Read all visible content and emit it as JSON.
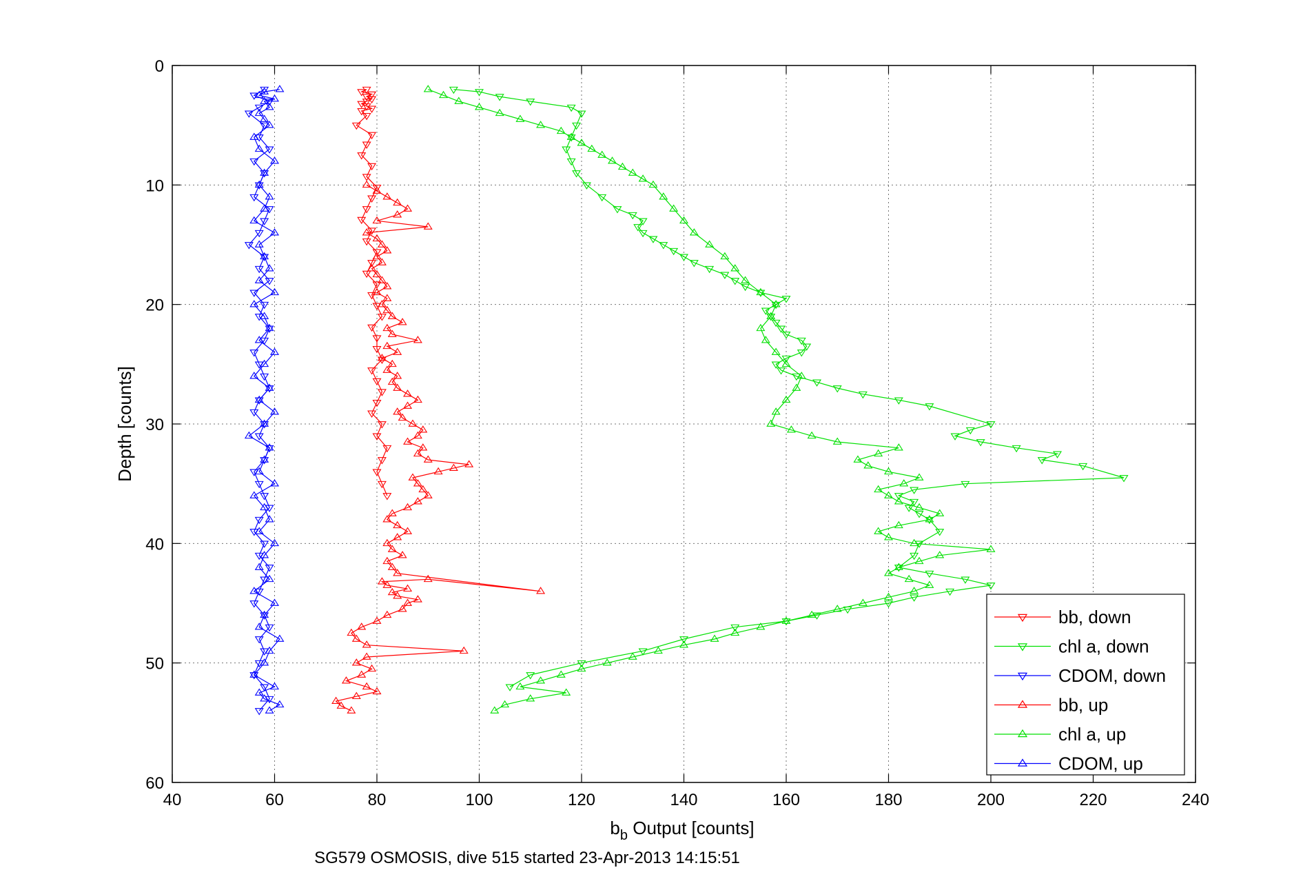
{
  "chart_data": {
    "type": "line",
    "title": "",
    "caption": "SG579 OSMOSIS, dive 515 started 23-Apr-2013 14:15:51",
    "xlabel_main": "b",
    "xlabel_sub": "b",
    "xlabel_rest": " Output [counts]",
    "ylabel": "Depth [counts]",
    "xlim": [
      40,
      240
    ],
    "ylim": [
      0,
      60
    ],
    "y_reversed": true,
    "x_ticks": [
      "40",
      "60",
      "80",
      "100",
      "120",
      "140",
      "160",
      "180",
      "200",
      "220",
      "240"
    ],
    "y_ticks": [
      "0",
      "10",
      "20",
      "30",
      "40",
      "50",
      "60"
    ],
    "grid": true,
    "legend_position": "bottom-right",
    "series": [
      {
        "name": "bb, down",
        "color": "#ff0000",
        "marker": "triangle-down",
        "x": [
          78,
          77,
          79,
          78,
          79,
          78,
          77,
          78,
          79,
          77,
          78,
          76,
          79,
          78,
          77,
          79,
          78,
          80,
          79,
          78,
          77,
          79,
          78,
          80,
          79,
          78,
          80,
          79,
          80,
          81,
          79,
          80,
          80,
          81,
          79,
          80,
          81,
          80,
          79,
          81,
          80,
          82,
          81,
          80,
          81,
          82
        ],
        "y": [
          2.0,
          2.2,
          2.4,
          2.6,
          2.8,
          3.0,
          3.2,
          3.4,
          3.6,
          3.8,
          4.2,
          5.0,
          5.8,
          6.6,
          7.5,
          8.4,
          9.3,
          10.2,
          11.1,
          12.0,
          12.9,
          13.8,
          14.7,
          15.6,
          16.5,
          17.4,
          18.3,
          19.2,
          20.1,
          21.0,
          21.9,
          22.8,
          23.7,
          24.6,
          25.5,
          26.4,
          27.3,
          28.2,
          29.1,
          30.0,
          31.0,
          32.0,
          33.0,
          34.0,
          35.0,
          36.0
        ]
      },
      {
        "name": "chl a, down",
        "color": "#00e000",
        "marker": "triangle-down",
        "x": [
          95,
          100,
          104,
          110,
          118,
          120,
          119,
          118,
          117,
          118,
          119,
          121,
          124,
          127,
          130,
          132,
          131,
          132,
          134,
          136,
          138,
          140,
          142,
          145,
          148,
          150,
          152,
          155,
          160,
          158,
          156,
          157,
          158,
          159,
          160,
          163,
          164,
          163,
          160,
          158,
          159,
          162,
          166,
          170,
          175,
          182,
          188,
          200,
          196,
          193,
          198,
          205,
          213,
          210,
          218,
          226,
          195,
          185,
          182,
          185,
          184,
          186,
          188,
          190,
          186,
          185,
          182,
          188,
          195,
          200,
          192,
          185,
          180,
          172,
          166,
          160,
          150,
          140,
          132,
          120,
          110,
          106
        ],
        "y": [
          2.0,
          2.2,
          2.6,
          3.0,
          3.5,
          4.0,
          5.0,
          6.0,
          7.0,
          8.0,
          9.0,
          10.0,
          11.0,
          12.0,
          12.5,
          13.0,
          13.5,
          14.0,
          14.5,
          15.0,
          15.5,
          16.0,
          16.5,
          17.0,
          17.5,
          18.0,
          18.5,
          19.0,
          19.5,
          20.0,
          20.5,
          21.0,
          21.5,
          22.0,
          22.5,
          23.0,
          23.5,
          24.0,
          24.5,
          25.0,
          25.5,
          26.0,
          26.5,
          27.0,
          27.5,
          28.0,
          28.5,
          30.0,
          30.5,
          31.0,
          31.5,
          32.0,
          32.5,
          33.0,
          33.5,
          34.5,
          35.0,
          35.5,
          36.0,
          36.5,
          37.0,
          37.5,
          38.0,
          39.0,
          40.0,
          41.0,
          42.0,
          42.5,
          43.0,
          43.5,
          44.0,
          44.5,
          45.0,
          45.5,
          46.0,
          46.5,
          47.0,
          48.0,
          49.0,
          50.0,
          51.0,
          52.0
        ]
      },
      {
        "name": "CDOM, down",
        "color": "#0000ff",
        "marker": "triangle-down",
        "x": [
          58,
          56,
          59,
          57,
          55,
          58,
          57,
          59,
          56,
          58,
          57,
          56,
          59,
          58,
          57,
          55,
          58,
          57,
          59,
          56,
          58,
          57,
          59,
          58,
          56,
          57,
          58,
          59,
          57,
          56,
          58,
          57,
          59,
          58,
          56,
          57,
          58,
          59,
          57,
          56,
          58,
          57,
          59,
          58,
          57,
          56,
          58,
          59,
          57,
          58,
          57,
          56,
          58,
          59,
          57
        ],
        "y": [
          2.0,
          2.5,
          3.0,
          3.5,
          4.0,
          5.0,
          6.0,
          7.0,
          8.0,
          9.0,
          10.0,
          11.0,
          12.0,
          13.0,
          14.0,
          15.0,
          16.0,
          17.0,
          18.0,
          19.0,
          20.0,
          21.0,
          22.0,
          23.0,
          24.0,
          25.0,
          26.0,
          27.0,
          28.0,
          29.0,
          30.0,
          31.0,
          32.0,
          33.0,
          34.0,
          35.0,
          36.0,
          37.0,
          38.0,
          39.0,
          40.0,
          41.0,
          42.0,
          43.0,
          44.0,
          45.0,
          46.0,
          47.0,
          48.0,
          49.0,
          50.0,
          51.0,
          52.0,
          53.0,
          54.0
        ]
      },
      {
        "name": "bb, up",
        "color": "#ff0000",
        "marker": "triangle-up",
        "x": [
          75,
          73,
          72,
          76,
          80,
          78,
          74,
          77,
          79,
          76,
          78,
          97,
          78,
          76,
          75,
          77,
          80,
          82,
          85,
          86,
          88,
          84,
          83,
          86,
          82,
          81,
          90,
          112,
          84,
          83,
          82,
          85,
          83,
          82,
          84,
          86,
          84,
          82,
          83,
          86,
          88,
          90,
          89,
          88,
          87,
          92,
          95,
          98,
          90,
          88,
          89,
          86,
          88,
          89,
          87,
          85,
          84,
          86,
          88,
          86,
          84,
          83,
          84,
          82,
          83,
          81,
          84,
          82,
          88,
          83,
          82,
          85,
          83,
          82,
          81,
          82,
          80,
          82,
          81,
          80,
          79,
          81,
          80,
          82,
          81,
          80,
          78,
          90,
          80,
          84,
          86,
          84,
          82,
          80,
          78
        ],
        "y": [
          54.0,
          53.6,
          53.2,
          52.8,
          52.4,
          52.0,
          51.5,
          51.0,
          50.5,
          50.0,
          49.5,
          49.0,
          48.5,
          48.0,
          47.5,
          47.0,
          46.5,
          46.0,
          45.5,
          45.0,
          44.7,
          44.4,
          44.1,
          43.8,
          43.5,
          43.2,
          43.0,
          44.0,
          42.5,
          42.0,
          41.5,
          41.0,
          40.5,
          40.0,
          39.5,
          39.0,
          38.5,
          38.0,
          37.5,
          37.0,
          36.5,
          36.0,
          35.5,
          35.0,
          34.5,
          34.0,
          33.7,
          33.4,
          33.0,
          32.5,
          32.0,
          31.5,
          31.0,
          30.5,
          30.0,
          29.5,
          29.0,
          28.5,
          28.0,
          27.5,
          27.0,
          26.5,
          26.0,
          25.5,
          25.0,
          24.5,
          24.0,
          23.5,
          23.0,
          22.5,
          22.0,
          21.5,
          21.0,
          20.5,
          20.0,
          19.5,
          19.0,
          18.5,
          18.0,
          17.5,
          17.0,
          16.5,
          16.0,
          15.5,
          15.0,
          14.5,
          14.0,
          13.5,
          13.0,
          12.5,
          12.0,
          11.5,
          11.0,
          10.5,
          10.0
        ]
      },
      {
        "name": "chl a, up",
        "color": "#00e000",
        "marker": "triangle-up",
        "x": [
          103,
          105,
          110,
          117,
          108,
          112,
          116,
          120,
          125,
          130,
          135,
          140,
          146,
          150,
          155,
          160,
          165,
          170,
          175,
          180,
          185,
          188,
          184,
          180,
          182,
          186,
          190,
          200,
          185,
          180,
          178,
          182,
          188,
          190,
          186,
          182,
          180,
          178,
          183,
          186,
          180,
          176,
          174,
          178,
          182,
          170,
          165,
          161,
          157,
          158,
          160,
          162,
          163,
          160,
          158,
          156,
          155,
          157,
          158,
          155,
          152,
          150,
          148,
          145,
          142,
          140,
          138,
          136,
          134,
          132,
          130,
          128,
          126,
          124,
          122,
          120,
          118,
          116,
          112,
          108,
          104,
          100,
          96,
          93,
          90
        ],
        "y": [
          54.0,
          53.5,
          53.0,
          52.5,
          52.0,
          51.5,
          51.0,
          50.5,
          50.0,
          49.5,
          49.0,
          48.5,
          48.0,
          47.5,
          47.0,
          46.5,
          46.0,
          45.5,
          45.0,
          44.5,
          44.0,
          43.5,
          43.0,
          42.5,
          42.0,
          41.5,
          41.0,
          40.5,
          40.0,
          39.5,
          39.0,
          38.5,
          38.0,
          37.5,
          37.0,
          36.5,
          36.0,
          35.5,
          35.0,
          34.5,
          34.0,
          33.5,
          33.0,
          32.5,
          32.0,
          31.5,
          31.0,
          30.5,
          30.0,
          29.0,
          28.0,
          27.0,
          26.0,
          25.0,
          24.0,
          23.0,
          22.0,
          21.0,
          20.0,
          19.0,
          18.0,
          17.0,
          16.0,
          15.0,
          14.0,
          13.0,
          12.0,
          11.0,
          10.0,
          9.5,
          9.0,
          8.5,
          8.0,
          7.5,
          7.0,
          6.5,
          6.0,
          5.5,
          5.0,
          4.5,
          4.0,
          3.5,
          3.0,
          2.5,
          2.0
        ]
      },
      {
        "name": "CDOM, up",
        "color": "#0000ff",
        "marker": "triangle-up",
        "x": [
          59,
          61,
          58,
          57,
          60,
          56,
          58,
          59,
          61,
          57,
          58,
          60,
          56,
          59,
          57,
          58,
          60,
          57,
          59,
          58,
          56,
          60,
          57,
          58,
          59,
          55,
          58,
          60,
          57,
          59,
          56,
          58,
          60,
          57,
          59,
          58,
          56,
          60,
          57,
          59,
          58,
          57,
          60,
          56,
          58,
          59,
          57,
          58,
          60,
          57,
          56,
          59,
          58,
          57,
          59,
          58,
          60,
          57,
          58,
          61
        ],
        "y": [
          54.0,
          53.5,
          53.0,
          52.5,
          52.0,
          51.0,
          50.0,
          49.0,
          48.0,
          47.0,
          46.0,
          45.0,
          44.0,
          43.0,
          42.0,
          41.0,
          40.0,
          39.0,
          38.0,
          37.0,
          36.0,
          35.0,
          34.0,
          33.0,
          32.0,
          31.0,
          30.0,
          29.0,
          28.0,
          27.0,
          26.0,
          25.0,
          24.0,
          23.0,
          22.0,
          21.0,
          20.0,
          19.0,
          18.0,
          17.0,
          16.0,
          15.0,
          14.0,
          13.0,
          12.0,
          11.0,
          10.0,
          9.0,
          8.0,
          7.0,
          6.0,
          5.0,
          4.5,
          4.0,
          3.5,
          3.0,
          2.8,
          2.5,
          2.2,
          2.0
        ]
      }
    ]
  }
}
